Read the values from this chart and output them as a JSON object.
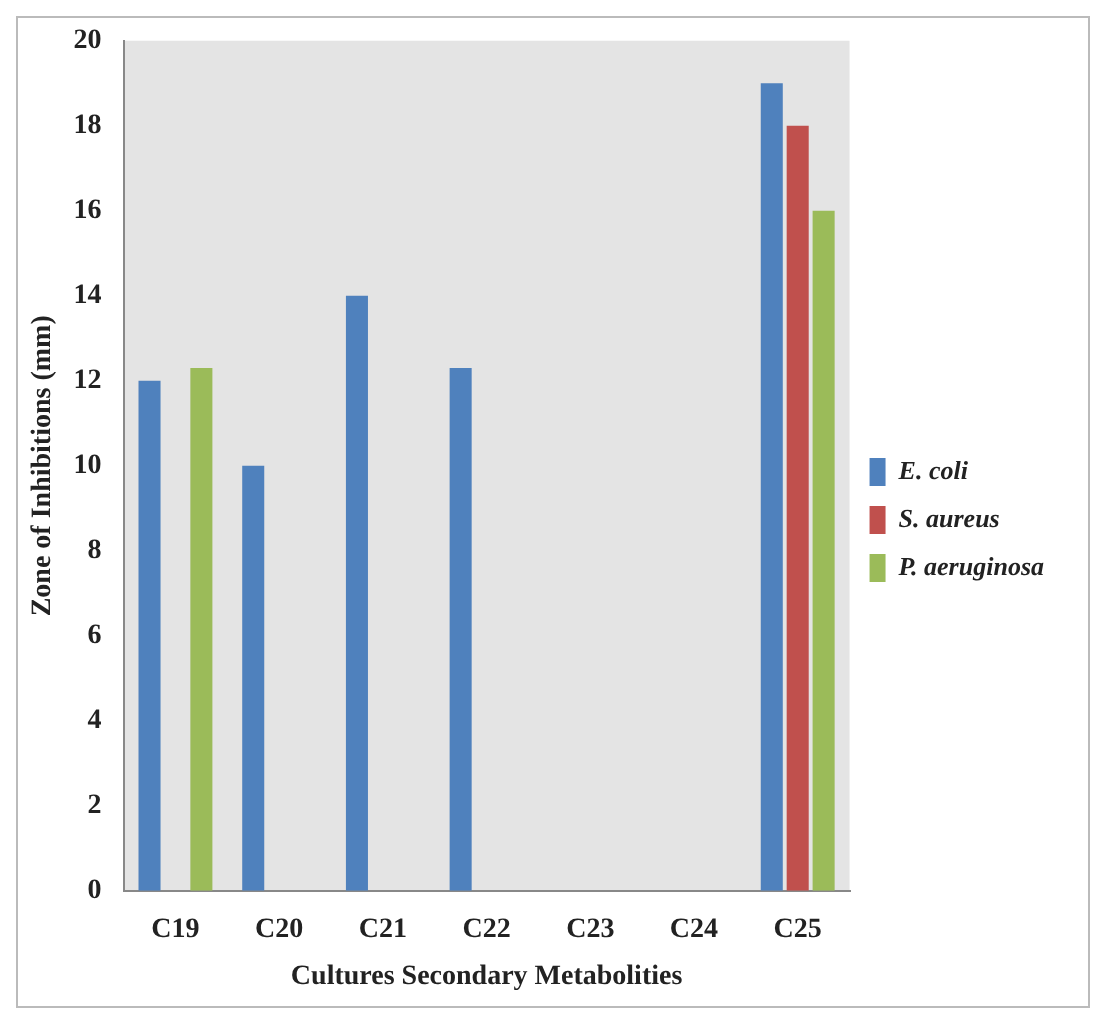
{
  "chart_data": {
    "type": "bar",
    "xlabel": "Cultures Secondary Metabolities",
    "ylabel": "Zone of Inhibitions (mm)",
    "categories": [
      "C19",
      "C20",
      "C21",
      "C22",
      "C23",
      "C24",
      "C25"
    ],
    "series": [
      {
        "name": "E. coli",
        "color": "#4f81bd",
        "values": [
          12,
          10,
          14,
          12.3,
          0,
          0,
          19
        ]
      },
      {
        "name": "S. aureus",
        "color": "#c0504d",
        "values": [
          0,
          0,
          0,
          0,
          0,
          0,
          18
        ]
      },
      {
        "name": "P. aeruginosa",
        "color": "#9bbb59",
        "values": [
          12.3,
          0,
          0,
          0,
          0,
          0,
          16
        ]
      }
    ],
    "ylim": [
      0,
      20
    ],
    "yticks": [
      0,
      2,
      4,
      6,
      8,
      10,
      12,
      14,
      16,
      18,
      20
    ],
    "grid": false,
    "legend": "right"
  }
}
